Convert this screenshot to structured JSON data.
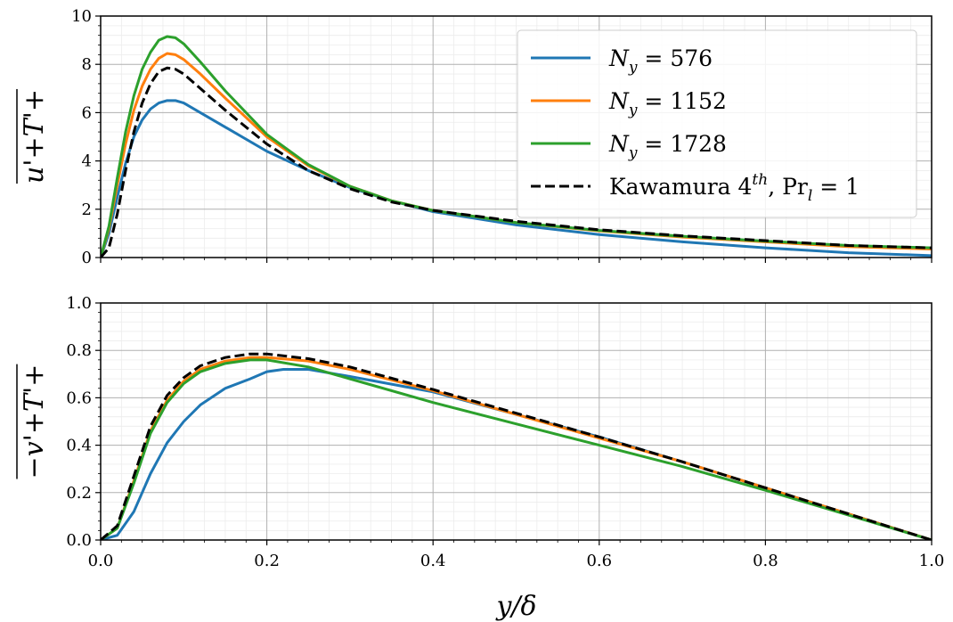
{
  "chart_data": [
    {
      "type": "line",
      "ylabel": "u'+T'+",
      "xlim": [
        0,
        1
      ],
      "ylim": [
        0,
        10
      ],
      "yticks": [
        "0",
        "2",
        "4",
        "6",
        "8",
        "10"
      ],
      "xticks": [
        "0.0",
        "0.2",
        "0.4",
        "0.6",
        "0.8",
        "1.0"
      ],
      "show_xticklabels": false,
      "grid": true,
      "minor_grid": true,
      "legend_placement": "top-right",
      "series": [
        {
          "name": "N_y = 576",
          "legend_parts": [
            {
              "t": "N",
              "style": "italic"
            },
            {
              "t": "y",
              "style": "sub-italic"
            },
            {
              "t": " = 576",
              "style": "normal"
            }
          ],
          "color": "#1f77b4",
          "dash": "solid",
          "points": [
            [
              0.0,
              0.0
            ],
            [
              0.01,
              1.0
            ],
            [
              0.02,
              2.5
            ],
            [
              0.03,
              3.9
            ],
            [
              0.04,
              5.0
            ],
            [
              0.05,
              5.7
            ],
            [
              0.06,
              6.15
            ],
            [
              0.07,
              6.4
            ],
            [
              0.08,
              6.5
            ],
            [
              0.09,
              6.5
            ],
            [
              0.1,
              6.4
            ],
            [
              0.12,
              6.0
            ],
            [
              0.15,
              5.4
            ],
            [
              0.2,
              4.4
            ],
            [
              0.25,
              3.6
            ],
            [
              0.3,
              2.9
            ],
            [
              0.35,
              2.35
            ],
            [
              0.4,
              1.9
            ],
            [
              0.5,
              1.35
            ],
            [
              0.6,
              0.95
            ],
            [
              0.7,
              0.65
            ],
            [
              0.8,
              0.4
            ],
            [
              0.9,
              0.2
            ],
            [
              1.0,
              0.08
            ]
          ]
        },
        {
          "name": "N_y = 1152",
          "legend_parts": [
            {
              "t": "N",
              "style": "italic"
            },
            {
              "t": "y",
              "style": "sub-italic"
            },
            {
              "t": " = 1152",
              "style": "normal"
            }
          ],
          "color": "#ff7f0e",
          "dash": "solid",
          "points": [
            [
              0.0,
              0.0
            ],
            [
              0.01,
              1.2
            ],
            [
              0.02,
              3.0
            ],
            [
              0.03,
              4.7
            ],
            [
              0.04,
              6.1
            ],
            [
              0.05,
              7.1
            ],
            [
              0.06,
              7.8
            ],
            [
              0.07,
              8.25
            ],
            [
              0.08,
              8.45
            ],
            [
              0.09,
              8.4
            ],
            [
              0.1,
              8.2
            ],
            [
              0.12,
              7.6
            ],
            [
              0.15,
              6.6
            ],
            [
              0.2,
              5.0
            ],
            [
              0.25,
              3.8
            ],
            [
              0.3,
              2.95
            ],
            [
              0.35,
              2.35
            ],
            [
              0.4,
              1.95
            ],
            [
              0.5,
              1.45
            ],
            [
              0.6,
              1.1
            ],
            [
              0.7,
              0.85
            ],
            [
              0.8,
              0.65
            ],
            [
              0.9,
              0.45
            ],
            [
              1.0,
              0.35
            ]
          ]
        },
        {
          "name": "N_y = 1728",
          "legend_parts": [
            {
              "t": "N",
              "style": "italic"
            },
            {
              "t": "y",
              "style": "sub-italic"
            },
            {
              "t": " = 1728",
              "style": "normal"
            }
          ],
          "color": "#2ca02c",
          "dash": "solid",
          "points": [
            [
              0.0,
              0.0
            ],
            [
              0.01,
              1.3
            ],
            [
              0.02,
              3.3
            ],
            [
              0.03,
              5.2
            ],
            [
              0.04,
              6.7
            ],
            [
              0.05,
              7.8
            ],
            [
              0.06,
              8.5
            ],
            [
              0.07,
              9.0
            ],
            [
              0.08,
              9.15
            ],
            [
              0.09,
              9.1
            ],
            [
              0.1,
              8.85
            ],
            [
              0.12,
              8.1
            ],
            [
              0.15,
              6.9
            ],
            [
              0.2,
              5.1
            ],
            [
              0.25,
              3.85
            ],
            [
              0.3,
              2.95
            ],
            [
              0.35,
              2.35
            ],
            [
              0.4,
              1.95
            ],
            [
              0.5,
              1.45
            ],
            [
              0.6,
              1.12
            ],
            [
              0.7,
              0.88
            ],
            [
              0.8,
              0.68
            ],
            [
              0.9,
              0.5
            ],
            [
              1.0,
              0.4
            ]
          ]
        },
        {
          "name": "Kawamura 4th, Pr_l = 1",
          "legend_parts": [
            {
              "t": "Kawamura 4",
              "style": "normal"
            },
            {
              "t": "th",
              "style": "sup-italic"
            },
            {
              "t": ", Pr",
              "style": "normal"
            },
            {
              "t": "l",
              "style": "sub-italic"
            },
            {
              "t": " = 1",
              "style": "normal"
            }
          ],
          "color": "#000000",
          "dash": "dashed",
          "points": [
            [
              0.0,
              0.0
            ],
            [
              0.01,
              0.4
            ],
            [
              0.02,
              1.8
            ],
            [
              0.03,
              3.6
            ],
            [
              0.04,
              5.2
            ],
            [
              0.05,
              6.4
            ],
            [
              0.06,
              7.2
            ],
            [
              0.07,
              7.7
            ],
            [
              0.08,
              7.85
            ],
            [
              0.09,
              7.8
            ],
            [
              0.1,
              7.6
            ],
            [
              0.12,
              7.0
            ],
            [
              0.15,
              6.1
            ],
            [
              0.2,
              4.7
            ],
            [
              0.25,
              3.6
            ],
            [
              0.3,
              2.85
            ],
            [
              0.35,
              2.3
            ],
            [
              0.4,
              1.95
            ],
            [
              0.5,
              1.5
            ],
            [
              0.6,
              1.15
            ],
            [
              0.7,
              0.9
            ],
            [
              0.8,
              0.7
            ],
            [
              0.9,
              0.5
            ],
            [
              1.0,
              0.4
            ]
          ]
        }
      ]
    },
    {
      "type": "line",
      "xlabel": "y/δ",
      "ylabel": "−v'+T'+",
      "xlim": [
        0,
        1
      ],
      "ylim": [
        0,
        1
      ],
      "yticks": [
        "0.0",
        "0.2",
        "0.4",
        "0.6",
        "0.8",
        "1.0"
      ],
      "xticks": [
        "0.0",
        "0.2",
        "0.4",
        "0.6",
        "0.8",
        "1.0"
      ],
      "show_xticklabels": true,
      "grid": true,
      "minor_grid": true,
      "series": [
        {
          "color": "#1f77b4",
          "dash": "solid",
          "points": [
            [
              0.0,
              0.0
            ],
            [
              0.02,
              0.02
            ],
            [
              0.04,
              0.12
            ],
            [
              0.06,
              0.28
            ],
            [
              0.08,
              0.41
            ],
            [
              0.1,
              0.5
            ],
            [
              0.12,
              0.57
            ],
            [
              0.15,
              0.64
            ],
            [
              0.18,
              0.68
            ],
            [
              0.2,
              0.71
            ],
            [
              0.22,
              0.72
            ],
            [
              0.25,
              0.72
            ],
            [
              0.3,
              0.69
            ],
            [
              0.4,
              0.625
            ],
            [
              0.5,
              0.53
            ],
            [
              0.6,
              0.435
            ],
            [
              0.7,
              0.33
            ],
            [
              0.8,
              0.22
            ],
            [
              0.9,
              0.11
            ],
            [
              1.0,
              0.0
            ]
          ]
        },
        {
          "color": "#ff7f0e",
          "dash": "solid",
          "points": [
            [
              0.0,
              0.0
            ],
            [
              0.02,
              0.05
            ],
            [
              0.04,
              0.25
            ],
            [
              0.06,
              0.46
            ],
            [
              0.08,
              0.59
            ],
            [
              0.1,
              0.67
            ],
            [
              0.12,
              0.72
            ],
            [
              0.15,
              0.755
            ],
            [
              0.18,
              0.77
            ],
            [
              0.2,
              0.77
            ],
            [
              0.25,
              0.755
            ],
            [
              0.3,
              0.72
            ],
            [
              0.4,
              0.63
            ],
            [
              0.5,
              0.53
            ],
            [
              0.6,
              0.43
            ],
            [
              0.7,
              0.33
            ],
            [
              0.8,
              0.22
            ],
            [
              0.9,
              0.11
            ],
            [
              1.0,
              0.0
            ]
          ]
        },
        {
          "color": "#2ca02c",
          "dash": "solid",
          "points": [
            [
              0.0,
              0.0
            ],
            [
              0.02,
              0.05
            ],
            [
              0.04,
              0.24
            ],
            [
              0.06,
              0.45
            ],
            [
              0.08,
              0.58
            ],
            [
              0.1,
              0.66
            ],
            [
              0.12,
              0.71
            ],
            [
              0.15,
              0.745
            ],
            [
              0.18,
              0.76
            ],
            [
              0.2,
              0.76
            ],
            [
              0.25,
              0.73
            ],
            [
              0.3,
              0.68
            ],
            [
              0.4,
              0.58
            ],
            [
              0.5,
              0.49
            ],
            [
              0.6,
              0.4
            ],
            [
              0.7,
              0.31
            ],
            [
              0.8,
              0.21
            ],
            [
              0.9,
              0.105
            ],
            [
              1.0,
              0.0
            ]
          ]
        },
        {
          "color": "#000000",
          "dash": "dashed",
          "points": [
            [
              0.0,
              0.0
            ],
            [
              0.02,
              0.06
            ],
            [
              0.04,
              0.27
            ],
            [
              0.06,
              0.48
            ],
            [
              0.08,
              0.61
            ],
            [
              0.1,
              0.685
            ],
            [
              0.12,
              0.735
            ],
            [
              0.15,
              0.77
            ],
            [
              0.18,
              0.785
            ],
            [
              0.2,
              0.785
            ],
            [
              0.25,
              0.765
            ],
            [
              0.3,
              0.73
            ],
            [
              0.4,
              0.635
            ],
            [
              0.5,
              0.535
            ],
            [
              0.6,
              0.435
            ],
            [
              0.7,
              0.33
            ],
            [
              0.8,
              0.22
            ],
            [
              0.9,
              0.11
            ],
            [
              1.0,
              0.0
            ]
          ]
        }
      ]
    }
  ]
}
